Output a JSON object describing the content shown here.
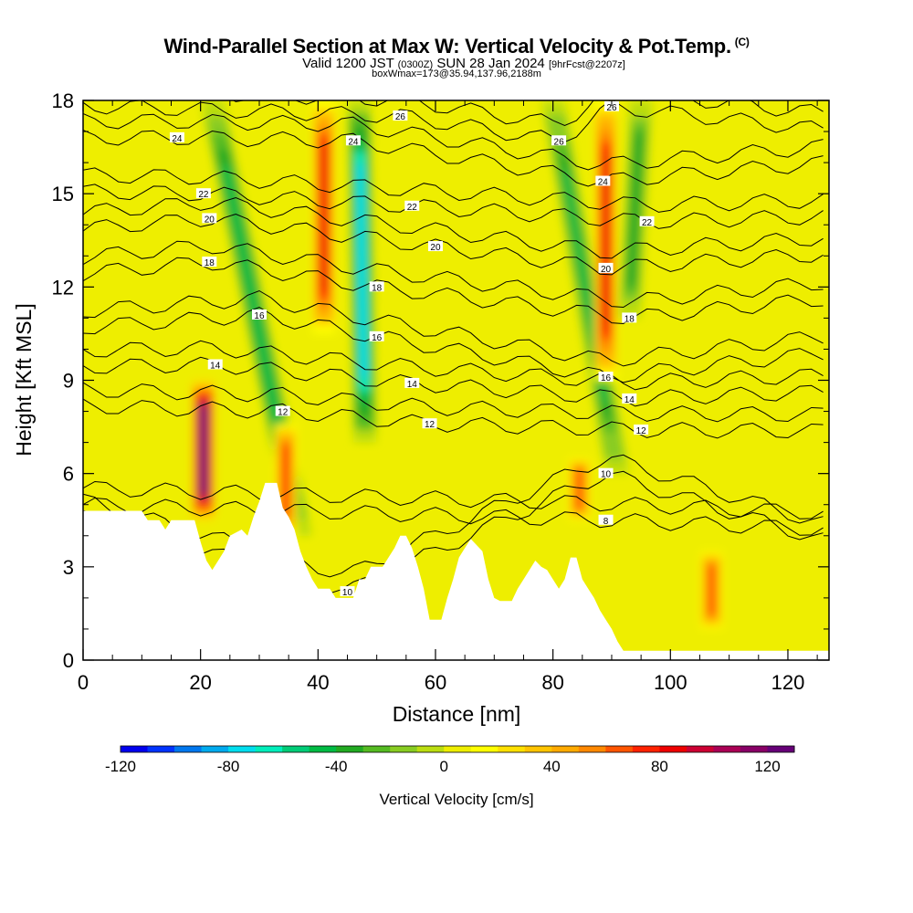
{
  "header": {
    "title": "Wind-Parallel Section at Max W: Vertical Velocity & Pot.Temp.",
    "copyright": "(C)",
    "valid_prefix": "Valid 1200 JST",
    "valid_utc": "(0300Z)",
    "valid_date": "SUN 28 Jan 2024",
    "valid_fcst": "[9hrFcst@2207z]",
    "boxwmax": "boxWmax=173@35.94,137.96,2188m"
  },
  "chart_data": {
    "type": "heatmap",
    "xlabel": "Distance [nm]",
    "ylabel": "Height [Kft MSL]",
    "xlim": [
      0,
      127
    ],
    "ylim": [
      0,
      18
    ],
    "x_ticks": [
      0,
      20,
      40,
      60,
      80,
      100,
      120
    ],
    "y_ticks": [
      0,
      3,
      6,
      9,
      12,
      15,
      18
    ],
    "colorbar": {
      "label": "Vertical Velocity [cm/s]",
      "range": [
        -120,
        130
      ],
      "ticks": [
        -120,
        -80,
        -40,
        0,
        40,
        80,
        120
      ],
      "colors": [
        "#0000ee",
        "#0033ff",
        "#0077ee",
        "#00aaee",
        "#00ddee",
        "#00eebb",
        "#00cc77",
        "#00bb44",
        "#22aa22",
        "#55bb22",
        "#88cc22",
        "#bbdd11",
        "#eeee00",
        "#ffff00",
        "#ffe000",
        "#ffc400",
        "#ffaa00",
        "#ff8800",
        "#ff5500",
        "#ff2200",
        "#ee0000",
        "#cc0033",
        "#aa0055",
        "#880066",
        "#660077"
      ]
    },
    "background_value_cm_s": 5,
    "updraft_bands": [
      {
        "x": 20.5,
        "y_bottom": 4.5,
        "y_top": 9.0,
        "max_w": 128
      },
      {
        "x": 34.5,
        "y_bottom": 4.0,
        "y_top": 7.6,
        "max_w": 70
      },
      {
        "x": 41.0,
        "y_bottom": 10.5,
        "y_top": 18.0,
        "max_w": 85
      },
      {
        "x": 84.5,
        "y_bottom": 4.5,
        "y_top": 6.5,
        "max_w": 65
      },
      {
        "x": 89.0,
        "y_bottom": 9.0,
        "y_top": 18.0,
        "max_w": 85
      },
      {
        "x": 107.0,
        "y_bottom": 1.0,
        "y_top": 3.5,
        "max_w": 60
      }
    ],
    "downdraft_bands": [
      {
        "x_bottom": 37.0,
        "x_top": 22.0,
        "y_bottom": 4.0,
        "y_top": 18.0,
        "min_w": -50
      },
      {
        "x_bottom": 48.0,
        "x_top": 47.0,
        "y_bottom": 7.0,
        "y_top": 18.0,
        "min_w": -75
      },
      {
        "x_bottom": 91.0,
        "x_top": 80.0,
        "y_bottom": 6.0,
        "y_top": 18.0,
        "min_w": -45
      },
      {
        "x_bottom": 93.0,
        "x_top": 95.0,
        "y_bottom": 11.0,
        "y_top": 18.0,
        "min_w": -40
      }
    ],
    "theta_contours": {
      "units": "degC potential temperature",
      "levels": [
        8,
        10,
        12,
        14,
        16,
        18,
        20,
        22,
        24,
        26
      ],
      "labels": [
        {
          "value": "8",
          "x": 89,
          "y": 4.5
        },
        {
          "value": "10",
          "x": 89,
          "y": 6.0
        },
        {
          "value": "10",
          "x": 45,
          "y": 2.2
        },
        {
          "value": "12",
          "x": 95,
          "y": 7.4
        },
        {
          "value": "12",
          "x": 59,
          "y": 7.6
        },
        {
          "value": "12",
          "x": 34,
          "y": 8.0
        },
        {
          "value": "14",
          "x": 93,
          "y": 8.4
        },
        {
          "value": "14",
          "x": 56,
          "y": 8.9
        },
        {
          "value": "14",
          "x": 22.5,
          "y": 9.5
        },
        {
          "value": "16",
          "x": 89,
          "y": 9.1
        },
        {
          "value": "16",
          "x": 50,
          "y": 10.4
        },
        {
          "value": "16",
          "x": 30,
          "y": 11.1
        },
        {
          "value": "18",
          "x": 93,
          "y": 11.0
        },
        {
          "value": "18",
          "x": 50,
          "y": 12.0
        },
        {
          "value": "18",
          "x": 21.5,
          "y": 12.8
        },
        {
          "value": "20",
          "x": 89,
          "y": 12.6
        },
        {
          "value": "20",
          "x": 60,
          "y": 13.3
        },
        {
          "value": "20",
          "x": 21.5,
          "y": 14.2
        },
        {
          "value": "22",
          "x": 96,
          "y": 14.1
        },
        {
          "value": "22",
          "x": 56,
          "y": 14.6
        },
        {
          "value": "22",
          "x": 20.5,
          "y": 15.0
        },
        {
          "value": "24",
          "x": 88.5,
          "y": 15.4
        },
        {
          "value": "24",
          "x": 46,
          "y": 16.7
        },
        {
          "value": "24",
          "x": 16,
          "y": 16.8
        },
        {
          "value": "26",
          "x": 81,
          "y": 16.7
        },
        {
          "value": "26",
          "x": 54,
          "y": 17.5
        },
        {
          "value": "26",
          "x": 90,
          "y": 17.8
        }
      ]
    },
    "terrain_profile_kft": [
      [
        0,
        4.8
      ],
      [
        10,
        4.8
      ],
      [
        11,
        4.5
      ],
      [
        13,
        4.5
      ],
      [
        14,
        4.2
      ],
      [
        15,
        4.5
      ],
      [
        19,
        4.5
      ],
      [
        20,
        3.8
      ],
      [
        21,
        3.2
      ],
      [
        22,
        2.9
      ],
      [
        23,
        3.2
      ],
      [
        24,
        3.5
      ],
      [
        25,
        4.0
      ],
      [
        27,
        4.2
      ],
      [
        28,
        4.0
      ],
      [
        29,
        4.6
      ],
      [
        30,
        5.1
      ],
      [
        31,
        5.7
      ],
      [
        33,
        5.7
      ],
      [
        34,
        4.9
      ],
      [
        35,
        4.6
      ],
      [
        36,
        4.2
      ],
      [
        37,
        3.5
      ],
      [
        38,
        3.0
      ],
      [
        39,
        2.6
      ],
      [
        40,
        2.3
      ],
      [
        42,
        2.3
      ],
      [
        43,
        2.0
      ],
      [
        46,
        2.0
      ],
      [
        47,
        2.6
      ],
      [
        48,
        2.6
      ],
      [
        49,
        3.0
      ],
      [
        51,
        3.0
      ],
      [
        52,
        3.3
      ],
      [
        53,
        3.6
      ],
      [
        54,
        4.0
      ],
      [
        55,
        4.0
      ],
      [
        56,
        3.6
      ],
      [
        57,
        3.0
      ],
      [
        58,
        2.3
      ],
      [
        59,
        1.3
      ],
      [
        61,
        1.3
      ],
      [
        62,
        2.0
      ],
      [
        63,
        2.6
      ],
      [
        64,
        3.3
      ],
      [
        65,
        3.6
      ],
      [
        66,
        3.9
      ],
      [
        68,
        3.5
      ],
      [
        69,
        2.6
      ],
      [
        70,
        2.0
      ],
      [
        71,
        1.9
      ],
      [
        73,
        1.9
      ],
      [
        74,
        2.3
      ],
      [
        75,
        2.6
      ],
      [
        76,
        2.9
      ],
      [
        77,
        3.2
      ],
      [
        78,
        3.0
      ],
      [
        79,
        2.9
      ],
      [
        80,
        2.6
      ],
      [
        81,
        2.3
      ],
      [
        82,
        2.6
      ],
      [
        83,
        3.3
      ],
      [
        84,
        3.3
      ],
      [
        85,
        2.6
      ],
      [
        86,
        2.3
      ],
      [
        87,
        2.0
      ],
      [
        88,
        1.6
      ],
      [
        89,
        1.3
      ],
      [
        90,
        1.0
      ],
      [
        91,
        0.6
      ],
      [
        92,
        0.3
      ],
      [
        127,
        0.3
      ]
    ]
  }
}
